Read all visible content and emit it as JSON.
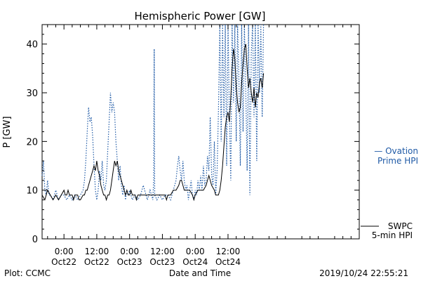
{
  "chart_data": {
    "type": "line",
    "title": "Hemispheric Power [GW]",
    "ylabel": "P [GW]",
    "xlabel": "Date and Time",
    "ylim": [
      0,
      44
    ],
    "yticks": [
      0,
      10,
      20,
      30,
      40
    ],
    "xlim_hours": [
      -8,
      108
    ],
    "x_ticks": [
      {
        "hour": 0,
        "time": "0:00",
        "date": "Oct22"
      },
      {
        "hour": 12,
        "time": "12:00",
        "date": "Oct22"
      },
      {
        "hour": 24,
        "time": "0:00",
        "date": "Oct23"
      },
      {
        "hour": 36,
        "time": "12:00",
        "date": "Oct23"
      },
      {
        "hour": 48,
        "time": "0:00",
        "date": "Oct24"
      },
      {
        "hour": 60,
        "time": "12:00",
        "date": "Oct24"
      }
    ],
    "minor_tick_step_hours": 3,
    "series": [
      {
        "name": "SWPC 5-min HPI",
        "legend_lines": [
          "SWPC",
          "5-min HPI"
        ],
        "color": "#000000",
        "style": "solid",
        "points": [
          [
            -8,
            9
          ],
          [
            -7,
            8
          ],
          [
            -6,
            10
          ],
          [
            -5,
            9
          ],
          [
            -4,
            8
          ],
          [
            -3,
            9
          ],
          [
            -2,
            8
          ],
          [
            -1,
            9
          ],
          [
            0,
            10
          ],
          [
            0.5,
            9
          ],
          [
            1,
            9
          ],
          [
            1.5,
            10
          ],
          [
            2,
            9
          ],
          [
            3,
            9
          ],
          [
            3.5,
            8
          ],
          [
            4,
            9
          ],
          [
            5,
            9
          ],
          [
            5.5,
            8
          ],
          [
            6,
            8
          ],
          [
            7,
            9
          ],
          [
            7.5,
            9
          ],
          [
            8,
            10
          ],
          [
            8.5,
            10
          ],
          [
            9,
            11
          ],
          [
            9.5,
            12
          ],
          [
            10,
            13
          ],
          [
            10.5,
            14
          ],
          [
            11,
            15
          ],
          [
            11.5,
            14
          ],
          [
            12,
            16
          ],
          [
            12.5,
            14
          ],
          [
            13,
            13
          ],
          [
            13.5,
            11
          ],
          [
            14,
            10
          ],
          [
            14.5,
            9
          ],
          [
            15,
            9
          ],
          [
            15.5,
            8
          ],
          [
            16,
            9
          ],
          [
            16.5,
            9
          ],
          [
            17,
            10
          ],
          [
            17.5,
            12
          ],
          [
            18,
            14
          ],
          [
            18.5,
            16
          ],
          [
            19,
            15
          ],
          [
            19.5,
            16
          ],
          [
            20,
            14
          ],
          [
            20.5,
            13
          ],
          [
            21,
            12
          ],
          [
            21.5,
            11
          ],
          [
            22,
            10
          ],
          [
            22.5,
            9
          ],
          [
            23,
            10
          ],
          [
            23.5,
            9
          ],
          [
            24,
            9
          ],
          [
            24.5,
            10
          ],
          [
            25,
            9
          ],
          [
            25.5,
            9
          ],
          [
            26,
            9
          ],
          [
            26.5,
            8
          ],
          [
            27,
            9
          ],
          [
            28,
            9
          ],
          [
            29,
            9
          ],
          [
            30,
            9
          ],
          [
            31,
            9
          ],
          [
            32,
            9
          ],
          [
            33,
            9
          ],
          [
            34,
            9
          ],
          [
            35,
            9
          ],
          [
            36,
            9
          ],
          [
            37,
            9
          ],
          [
            37.5,
            8
          ],
          [
            38,
            9
          ],
          [
            39,
            9
          ],
          [
            40,
            10
          ],
          [
            41,
            10
          ],
          [
            42,
            11
          ],
          [
            42.5,
            12
          ],
          [
            43,
            12
          ],
          [
            43.5,
            11
          ],
          [
            44,
            10
          ],
          [
            44.5,
            10
          ],
          [
            45,
            10
          ],
          [
            46,
            10
          ],
          [
            47,
            9
          ],
          [
            47.5,
            8
          ],
          [
            48,
            9
          ],
          [
            49,
            10
          ],
          [
            50,
            10
          ],
          [
            51,
            10
          ],
          [
            52,
            11
          ],
          [
            52.5,
            12
          ],
          [
            53,
            13
          ],
          [
            53.5,
            12
          ],
          [
            54,
            11
          ],
          [
            55,
            10
          ],
          [
            55.5,
            9
          ],
          [
            56,
            9
          ],
          [
            56.5,
            9
          ],
          [
            57,
            10
          ],
          [
            57.5,
            12
          ],
          [
            58,
            15
          ],
          [
            58.5,
            19
          ],
          [
            59,
            23
          ],
          [
            59.5,
            25
          ],
          [
            60,
            26
          ],
          [
            60.5,
            24
          ],
          [
            61,
            29
          ],
          [
            61.5,
            35
          ],
          [
            62,
            39
          ],
          [
            62.5,
            37
          ],
          [
            63,
            31
          ],
          [
            63.5,
            28
          ],
          [
            64,
            26
          ],
          [
            64.5,
            27
          ],
          [
            65,
            32
          ],
          [
            65.5,
            36
          ],
          [
            66,
            39
          ],
          [
            66.5,
            40
          ],
          [
            67,
            35
          ],
          [
            67.5,
            31
          ],
          [
            68,
            33
          ],
          [
            68.5,
            30
          ],
          [
            69,
            28
          ],
          [
            69.5,
            31
          ],
          [
            70,
            27
          ],
          [
            70.5,
            30
          ],
          [
            71,
            29
          ],
          [
            71.5,
            32
          ],
          [
            72,
            33
          ],
          [
            72.5,
            31
          ],
          [
            73,
            34
          ]
        ]
      },
      {
        "name": "Ovation Prime HPI",
        "legend_lines": [
          "— Ovation",
          "Prime HPI"
        ],
        "color": "#1f5aa6",
        "style": "dotted",
        "points": [
          [
            -8,
            13
          ],
          [
            -7.5,
            16
          ],
          [
            -7,
            10
          ],
          [
            -6.5,
            9
          ],
          [
            -6,
            12
          ],
          [
            -5.5,
            9
          ],
          [
            -5,
            9
          ],
          [
            -4,
            8
          ],
          [
            -3,
            10
          ],
          [
            -2,
            8
          ],
          [
            -1,
            9
          ],
          [
            0,
            9
          ],
          [
            1,
            8
          ],
          [
            2,
            9
          ],
          [
            3,
            8
          ],
          [
            4,
            9
          ],
          [
            5,
            8
          ],
          [
            6,
            9
          ],
          [
            7,
            10
          ],
          [
            7.5,
            12
          ],
          [
            8,
            16
          ],
          [
            8.5,
            22
          ],
          [
            9,
            27
          ],
          [
            9.5,
            24
          ],
          [
            10,
            25
          ],
          [
            10.5,
            21
          ],
          [
            11,
            15
          ],
          [
            11.5,
            10
          ],
          [
            12,
            8
          ],
          [
            12.5,
            10
          ],
          [
            13,
            14
          ],
          [
            13.5,
            12
          ],
          [
            14,
            16
          ],
          [
            14.5,
            11
          ],
          [
            15,
            10
          ],
          [
            15.5,
            12
          ],
          [
            16,
            18
          ],
          [
            16.5,
            24
          ],
          [
            17,
            30
          ],
          [
            17.5,
            26
          ],
          [
            18,
            28
          ],
          [
            18.5,
            26
          ],
          [
            19,
            20
          ],
          [
            19.5,
            16
          ],
          [
            20,
            12
          ],
          [
            20.5,
            15
          ],
          [
            21,
            11
          ],
          [
            21.5,
            9
          ],
          [
            22,
            11
          ],
          [
            22.5,
            8
          ],
          [
            23,
            10
          ],
          [
            23.5,
            9
          ],
          [
            24,
            10
          ],
          [
            25,
            8
          ],
          [
            26,
            9
          ],
          [
            27,
            8
          ],
          [
            28,
            9
          ],
          [
            29,
            11
          ],
          [
            30,
            9
          ],
          [
            30.5,
            8
          ],
          [
            31,
            9
          ],
          [
            31.5,
            10
          ],
          [
            32,
            9
          ],
          [
            32.5,
            8
          ],
          [
            32.8,
            12
          ],
          [
            33,
            39
          ],
          [
            33.2,
            9
          ],
          [
            34,
            8
          ],
          [
            35,
            9
          ],
          [
            36,
            8
          ],
          [
            37,
            9
          ],
          [
            38,
            9
          ],
          [
            39,
            8
          ],
          [
            40,
            10
          ],
          [
            41,
            12
          ],
          [
            41.5,
            15
          ],
          [
            42,
            17
          ],
          [
            42.5,
            14
          ],
          [
            43,
            12
          ],
          [
            43.5,
            16
          ],
          [
            44,
            12
          ],
          [
            44.5,
            10
          ],
          [
            45,
            11
          ],
          [
            45.5,
            8
          ],
          [
            46,
            10
          ],
          [
            46.5,
            12
          ],
          [
            47,
            9
          ],
          [
            47.5,
            8
          ],
          [
            48,
            10
          ],
          [
            48.5,
            9
          ],
          [
            49,
            12
          ],
          [
            49.5,
            10
          ],
          [
            50,
            13
          ],
          [
            50.5,
            10
          ],
          [
            51,
            15
          ],
          [
            51.5,
            11
          ],
          [
            52,
            12
          ],
          [
            52.5,
            17
          ],
          [
            53,
            14
          ],
          [
            53.5,
            25
          ],
          [
            54,
            13
          ],
          [
            54.5,
            11
          ],
          [
            55,
            20
          ],
          [
            55.5,
            9
          ],
          [
            56,
            14
          ],
          [
            56.5,
            26
          ],
          [
            57,
            44
          ],
          [
            57.5,
            20
          ],
          [
            58,
            44
          ],
          [
            58.5,
            25
          ],
          [
            59,
            44
          ],
          [
            59.5,
            15
          ],
          [
            60,
            44
          ],
          [
            60.5,
            26
          ],
          [
            61,
            12
          ],
          [
            61.5,
            44
          ],
          [
            62,
            28
          ],
          [
            62.5,
            44
          ],
          [
            63,
            20
          ],
          [
            63.5,
            44
          ],
          [
            64,
            32
          ],
          [
            64.5,
            15
          ],
          [
            65,
            44
          ],
          [
            65.5,
            22
          ],
          [
            66,
            44
          ],
          [
            66.5,
            30
          ],
          [
            67,
            14
          ],
          [
            67.5,
            44
          ],
          [
            68,
            9
          ],
          [
            68.5,
            38
          ],
          [
            69,
            44
          ],
          [
            69.5,
            25
          ],
          [
            70,
            44
          ],
          [
            70.5,
            16
          ],
          [
            71,
            44
          ],
          [
            71.5,
            30
          ],
          [
            72,
            44
          ],
          [
            72.5,
            25
          ],
          [
            73,
            44
          ]
        ]
      }
    ]
  },
  "footer": {
    "left": "Plot: CCMC",
    "timestamp": "2019/10/24 22:55:21"
  }
}
